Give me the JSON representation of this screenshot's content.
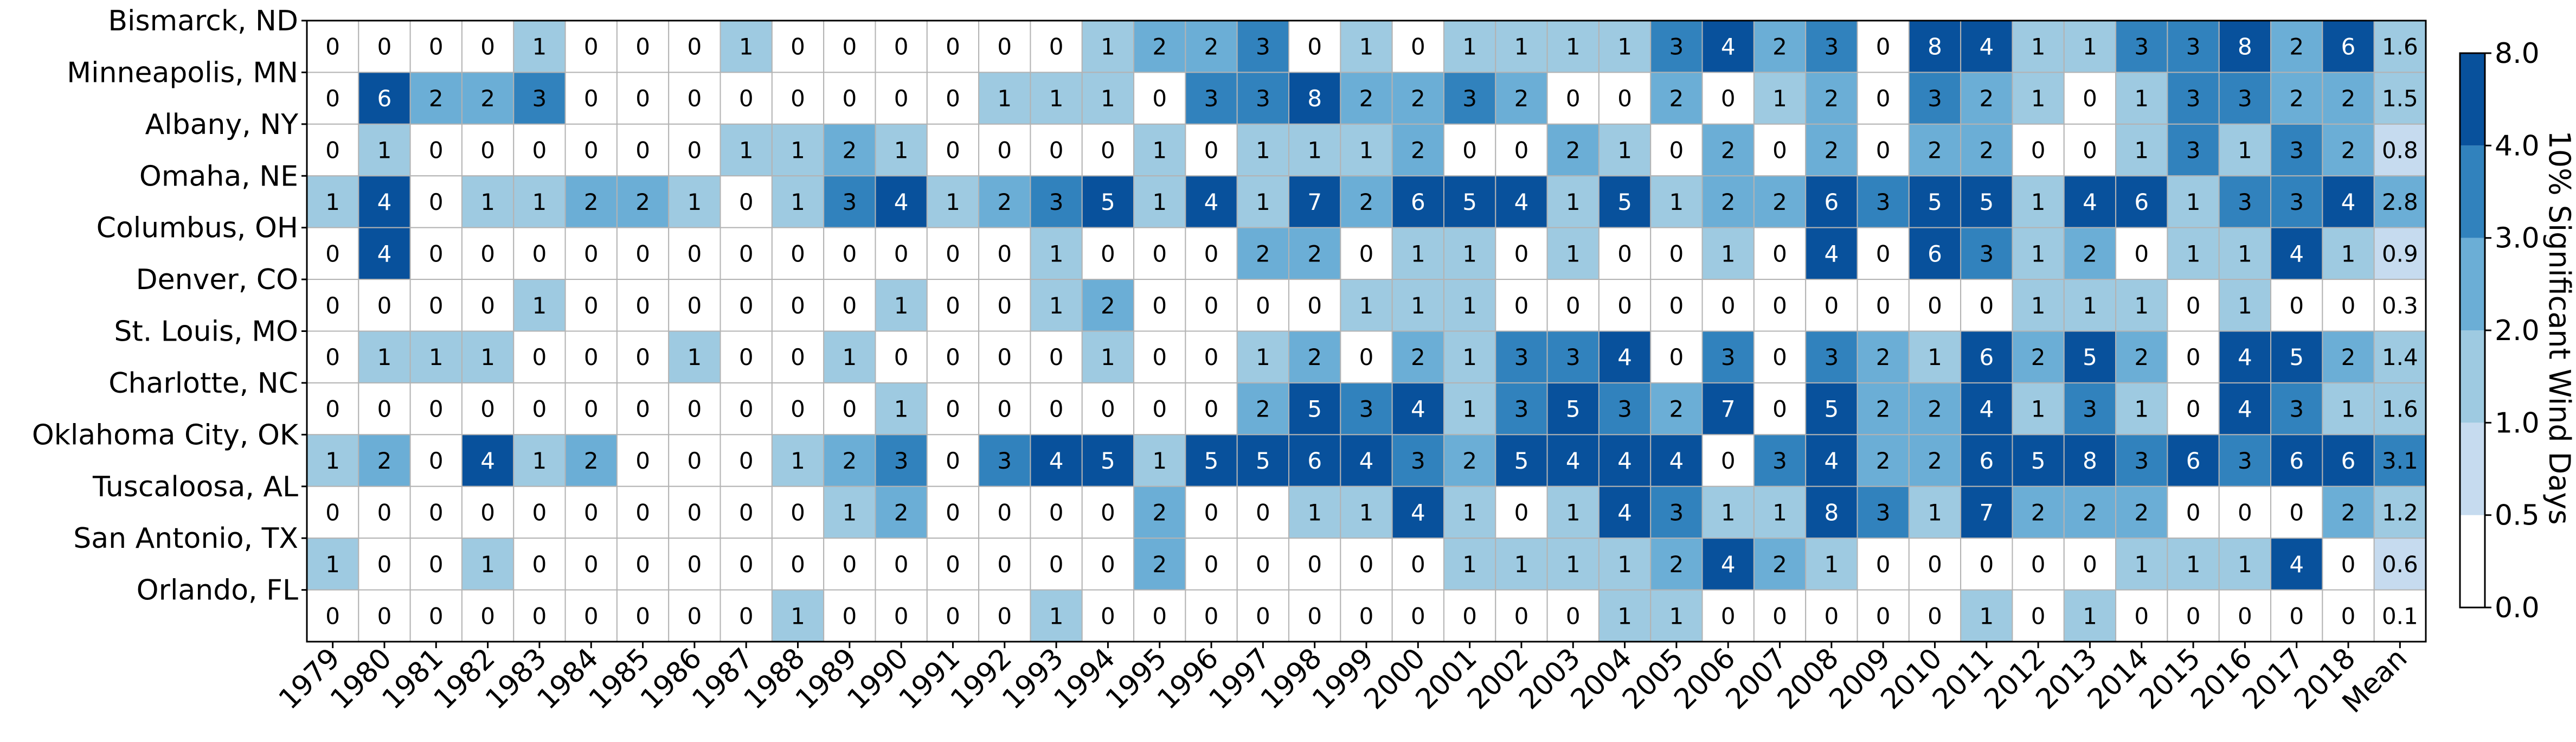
{
  "chart_data": {
    "type": "heatmap",
    "title": "",
    "rows": [
      "Bismarck, ND",
      "Minneapolis, MN",
      "Albany, NY",
      "Omaha, NE",
      "Columbus, OH",
      "Denver, CO",
      "St. Louis, MO",
      "Charlotte, NC",
      "Oklahoma City, OK",
      "Tuscaloosa, AL",
      "San Antonio, TX",
      "Orlando, FL"
    ],
    "columns": [
      "1979",
      "1980",
      "1981",
      "1982",
      "1983",
      "1984",
      "1985",
      "1986",
      "1987",
      "1988",
      "1989",
      "1990",
      "1991",
      "1992",
      "1993",
      "1994",
      "1995",
      "1996",
      "1997",
      "1998",
      "1999",
      "2000",
      "2001",
      "2002",
      "2003",
      "2004",
      "2005",
      "2006",
      "2007",
      "2008",
      "2009",
      "2010",
      "2011",
      "2012",
      "2013",
      "2014",
      "2015",
      "2016",
      "2017",
      "2018",
      "Mean"
    ],
    "values": [
      [
        "0",
        "0",
        "0",
        "0",
        "1",
        "0",
        "0",
        "0",
        "1",
        "0",
        "0",
        "0",
        "0",
        "0",
        "0",
        "1",
        "2",
        "2",
        "3",
        "0",
        "1",
        "0",
        "1",
        "1",
        "1",
        "1",
        "3",
        "4",
        "2",
        "3",
        "0",
        "8",
        "4",
        "1",
        "1",
        "3",
        "3",
        "8",
        "2",
        "6",
        "1.6"
      ],
      [
        "0",
        "6",
        "2",
        "2",
        "3",
        "0",
        "0",
        "0",
        "0",
        "0",
        "0",
        "0",
        "0",
        "1",
        "1",
        "1",
        "0",
        "3",
        "3",
        "8",
        "2",
        "2",
        "3",
        "2",
        "0",
        "0",
        "2",
        "0",
        "1",
        "2",
        "0",
        "3",
        "2",
        "1",
        "0",
        "1",
        "3",
        "3",
        "2",
        "2",
        "1.5"
      ],
      [
        "0",
        "1",
        "0",
        "0",
        "0",
        "0",
        "0",
        "0",
        "1",
        "1",
        "2",
        "1",
        "0",
        "0",
        "0",
        "0",
        "1",
        "0",
        "1",
        "1",
        "1",
        "2",
        "0",
        "0",
        "2",
        "1",
        "0",
        "2",
        "0",
        "2",
        "0",
        "2",
        "2",
        "0",
        "0",
        "1",
        "3",
        "1",
        "3",
        "2",
        "0.8"
      ],
      [
        "1",
        "4",
        "0",
        "1",
        "1",
        "2",
        "2",
        "1",
        "0",
        "1",
        "3",
        "4",
        "1",
        "2",
        "3",
        "5",
        "1",
        "4",
        "1",
        "7",
        "2",
        "6",
        "5",
        "4",
        "1",
        "5",
        "1",
        "2",
        "2",
        "6",
        "3",
        "5",
        "5",
        "1",
        "4",
        "6",
        "1",
        "3",
        "3",
        "4",
        "2.8"
      ],
      [
        "0",
        "4",
        "0",
        "0",
        "0",
        "0",
        "0",
        "0",
        "0",
        "0",
        "0",
        "0",
        "0",
        "0",
        "1",
        "0",
        "0",
        "0",
        "2",
        "2",
        "0",
        "1",
        "1",
        "0",
        "1",
        "0",
        "0",
        "1",
        "0",
        "4",
        "0",
        "6",
        "3",
        "1",
        "2",
        "0",
        "1",
        "1",
        "4",
        "1",
        "0.9"
      ],
      [
        "0",
        "0",
        "0",
        "0",
        "1",
        "0",
        "0",
        "0",
        "0",
        "0",
        "0",
        "1",
        "0",
        "0",
        "1",
        "2",
        "0",
        "0",
        "0",
        "0",
        "1",
        "1",
        "1",
        "0",
        "0",
        "0",
        "0",
        "0",
        "0",
        "0",
        "0",
        "0",
        "0",
        "1",
        "1",
        "1",
        "0",
        "1",
        "0",
        "0",
        "0.3"
      ],
      [
        "0",
        "1",
        "1",
        "1",
        "0",
        "0",
        "0",
        "1",
        "0",
        "0",
        "1",
        "0",
        "0",
        "0",
        "0",
        "1",
        "0",
        "0",
        "1",
        "2",
        "0",
        "2",
        "1",
        "3",
        "3",
        "4",
        "0",
        "3",
        "0",
        "3",
        "2",
        "1",
        "6",
        "2",
        "5",
        "2",
        "0",
        "4",
        "5",
        "2",
        "1.4"
      ],
      [
        "0",
        "0",
        "0",
        "0",
        "0",
        "0",
        "0",
        "0",
        "0",
        "0",
        "0",
        "1",
        "0",
        "0",
        "0",
        "0",
        "0",
        "0",
        "2",
        "5",
        "3",
        "4",
        "1",
        "3",
        "5",
        "3",
        "2",
        "7",
        "0",
        "5",
        "2",
        "2",
        "4",
        "1",
        "3",
        "1",
        "0",
        "4",
        "3",
        "1",
        "1.6"
      ],
      [
        "1",
        "2",
        "0",
        "4",
        "1",
        "2",
        "0",
        "0",
        "0",
        "1",
        "2",
        "3",
        "0",
        "3",
        "4",
        "5",
        "1",
        "5",
        "5",
        "6",
        "4",
        "3",
        "2",
        "5",
        "4",
        "4",
        "4",
        "0",
        "3",
        "4",
        "2",
        "2",
        "6",
        "5",
        "8",
        "3",
        "6",
        "3",
        "6",
        "6",
        "3.1"
      ],
      [
        "0",
        "0",
        "0",
        "0",
        "0",
        "0",
        "0",
        "0",
        "0",
        "0",
        "1",
        "2",
        "0",
        "0",
        "0",
        "0",
        "2",
        "0",
        "0",
        "1",
        "1",
        "4",
        "1",
        "0",
        "1",
        "4",
        "3",
        "1",
        "1",
        "8",
        "3",
        "1",
        "7",
        "2",
        "2",
        "2",
        "0",
        "0",
        "0",
        "2",
        "1.2"
      ],
      [
        "1",
        "0",
        "0",
        "1",
        "0",
        "0",
        "0",
        "0",
        "0",
        "0",
        "0",
        "0",
        "0",
        "0",
        "0",
        "0",
        "2",
        "0",
        "0",
        "0",
        "0",
        "0",
        "1",
        "1",
        "1",
        "1",
        "2",
        "4",
        "2",
        "1",
        "0",
        "0",
        "0",
        "0",
        "0",
        "1",
        "1",
        "1",
        "4",
        "0",
        "0.6"
      ],
      [
        "0",
        "0",
        "0",
        "0",
        "0",
        "0",
        "0",
        "0",
        "0",
        "1",
        "0",
        "0",
        "0",
        "0",
        "1",
        "0",
        "0",
        "0",
        "0",
        "0",
        "0",
        "0",
        "0",
        "0",
        "0",
        "1",
        "1",
        "0",
        "0",
        "0",
        "0",
        "0",
        "1",
        "0",
        "1",
        "0",
        "0",
        "0",
        "0",
        "0",
        "0.1"
      ]
    ],
    "colorbar": {
      "label": "10% Significant Wind Days",
      "bounds": [
        0.0,
        0.5,
        1.0,
        2.0,
        3.0,
        4.0,
        8.0
      ],
      "tick_labels": [
        "0.0",
        "0.5",
        "1.0",
        "2.0",
        "3.0",
        "4.0",
        "8.0"
      ],
      "colors": [
        "#ffffff",
        "#c6dbef",
        "#9ecae1",
        "#6baed6",
        "#3182bd",
        "#08519c"
      ]
    }
  }
}
